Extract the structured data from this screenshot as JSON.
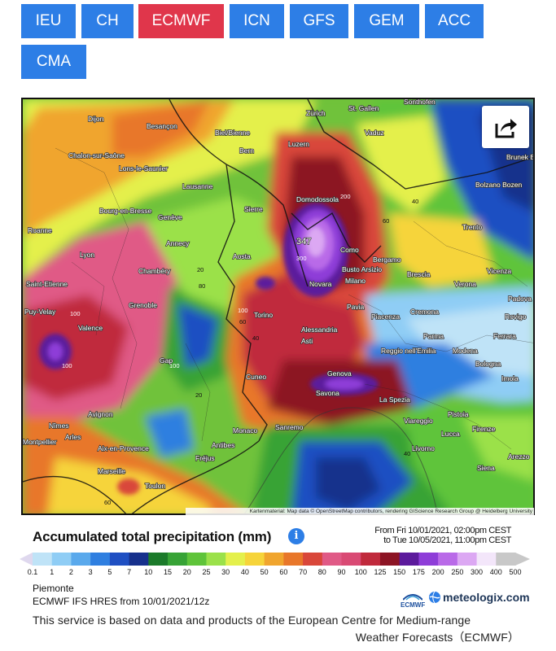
{
  "tabs": [
    {
      "label": "IEU",
      "active": false
    },
    {
      "label": "CH",
      "active": false
    },
    {
      "label": "ECMWF",
      "active": true
    },
    {
      "label": "ICN",
      "active": false
    },
    {
      "label": "GFS",
      "active": false
    },
    {
      "label": "GEM",
      "active": false
    },
    {
      "label": "ACC",
      "active": false
    },
    {
      "label": "CMA",
      "active": false
    }
  ],
  "map": {
    "attribution": "Kartenmaterial: Map data © OpenStreetMap contributors, rendering GIScience Research Group @ Heidelberg University",
    "share_icon": "share-arrow-icon",
    "cities": [
      "Dijon",
      "Besançon",
      "St. Gallen",
      "Sonthofen",
      "Zürich",
      "Biel/Bienne",
      "Vaduz",
      "Chalon-sur-Saône",
      "Lons-le-Saunier",
      "Luzern",
      "Bern",
      "Brunek Bruni",
      "Bolzano Bozen",
      "Lausanne",
      "Bourg-en-Bresse",
      "Genève",
      "Sierre",
      "Domodossola",
      "Roanne",
      "Annecy",
      "Trento",
      "Lyon",
      "Chambéry",
      "Aosta",
      "Como",
      "Bergamo",
      "Busto Arsizio",
      "Brescia",
      "Vicenza",
      "Saint-Etienne",
      "Novara",
      "Milano",
      "Verona",
      "Padova",
      "Grenoble",
      "Torino",
      "Pavia",
      "Piacenza",
      "Cremona",
      "Rovigo",
      "Puy-Velay",
      "Valence",
      "Alessandria",
      "Asti",
      "Parma",
      "Ferrara",
      "Gap",
      "Reggio nell'Emilia",
      "Modena",
      "Bologna",
      "Imola",
      "Cuneo",
      "Genova",
      "Savona",
      "La Spezia",
      "Nîmes",
      "Avignon",
      "Monaco",
      "Sanremo",
      "Viareggio",
      "Pistoia",
      "Firenze",
      "Arles",
      "Aix-en-Provence",
      "Antibes",
      "Fréjus",
      "Livorno",
      "Lucca",
      "Arezzo",
      "Marseille",
      "Toulon",
      "Siena",
      "Montpellier"
    ],
    "value_labels": [
      "347",
      "300",
      "200",
      "100",
      "100",
      "100",
      "100",
      "60",
      "60",
      "80",
      "40",
      "40",
      "40",
      "20",
      "20",
      "60"
    ]
  },
  "legend": {
    "title": "Accumulated total precipitation (mm)",
    "info_icon": "info-icon",
    "period_from": "From Fri 10/01/2021, 02:00pm CEST",
    "period_to": "to Tue 10/05/2021, 11:00pm CEST",
    "ticks": [
      "0.1",
      "1",
      "2",
      "3",
      "5",
      "7",
      "10",
      "15",
      "20",
      "25",
      "30",
      "40",
      "50",
      "60",
      "70",
      "80",
      "90",
      "100",
      "125",
      "150",
      "175",
      "200",
      "250",
      "300",
      "400",
      "500"
    ],
    "colors": [
      "#dfd8ee",
      "#bfe3f7",
      "#8fcdf5",
      "#5aa9ec",
      "#2f7fe0",
      "#1f4fc2",
      "#16308c",
      "#1b7a2a",
      "#37a336",
      "#5fc43a",
      "#9be14a",
      "#e4f04c",
      "#f6d43a",
      "#f0a52e",
      "#e8772a",
      "#d9473a",
      "#e05a86",
      "#d94a74",
      "#c02a3c",
      "#8c1424",
      "#5c1a9c",
      "#8e3dd8",
      "#b96ae8",
      "#dca8f3",
      "#f3e6fa",
      "#c8c8c8"
    ]
  },
  "footer": {
    "region": "Piemonte",
    "model": "ECMWF IFS HRES from 10/01/2021/12z",
    "ecmwf_logo": "ECMWF",
    "meteologix_logo": "meteologix.com",
    "service_line1": "This service is based on data and products of the European Centre for Medium-range",
    "service_line2": "Weather Forecasts（ECMWF）"
  }
}
